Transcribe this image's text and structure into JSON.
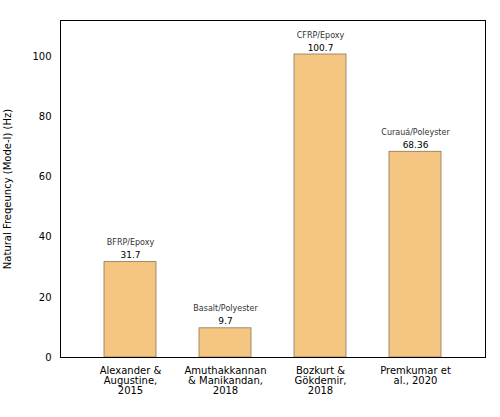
{
  "chart_data": {
    "type": "bar",
    "categories": [
      "Alexander &\nAugustine,\n2015",
      "Amuthakkannan\n& Manikandan,\n2018",
      "Bozkurt &\nGökdemir,\n2018",
      "Premkumar et\nal., 2020"
    ],
    "values": [
      31.7,
      9.7,
      100.7,
      68.36
    ],
    "color": "#F5C681",
    "ylabel": "Natural Freqeuncy (Mode-I) (Hz)",
    "ylim": [
      0,
      112
    ],
    "yticks": [
      0,
      20,
      40,
      60,
      80,
      100
    ],
    "data_labels": true,
    "annotations": [
      "BFRP/Epoxy",
      "Basalt/Polyester",
      "CFRP/Epoxy",
      "Curauá/Poleyster"
    ],
    "grid": false
  }
}
